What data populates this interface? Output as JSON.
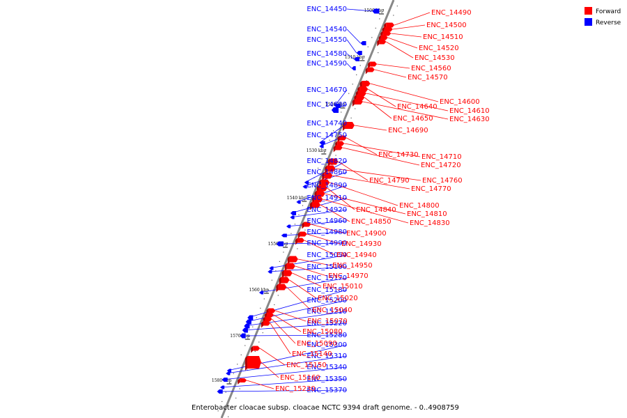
{
  "caption": "Enterobacter cloacae subsp. cloacae NCTC 9394 draft genome. - 0..4908759",
  "legend": {
    "forward": {
      "label": "Forward",
      "color": "#ff0000"
    },
    "reverse": {
      "label": "Reverse",
      "color": "#0000ff"
    }
  },
  "colors": {
    "backbone": "#888888",
    "leader": "#000000"
  },
  "ticks": [
    "1500 kbp",
    "1510 kbp",
    "1520 kbp",
    "1530 kbp",
    "1540 kbp",
    "1550 kbp",
    "1560 kbp",
    "1570 kbp",
    "1580 kbp"
  ],
  "reverse_genes": [
    "ENC_14450",
    "ENC_14540",
    "ENC_14550",
    "ENC_14580",
    "ENC_14590",
    "ENC_14670",
    "ENC_14680",
    "ENC_14740",
    "ENC_14750",
    "ENC_14820",
    "ENC_14860",
    "ENC_14890",
    "ENC_14910",
    "ENC_14920",
    "ENC_14960",
    "ENC_14980",
    "ENC_14990",
    "ENC_15050",
    "ENC_15100",
    "ENC_15170",
    "ENC_15180",
    "ENC_15200",
    "ENC_15210",
    "ENC_15220",
    "ENC_15280",
    "ENC_15300",
    "ENC_15310",
    "ENC_15340",
    "ENC_15350",
    "ENC_15370"
  ],
  "forward_genes": [
    "ENC_14490",
    "ENC_14500",
    "ENC_14510",
    "ENC_14520",
    "ENC_14530",
    "ENC_14560",
    "ENC_14570",
    "ENC_14600",
    "ENC_14640",
    "ENC_14610",
    "ENC_14650",
    "ENC_14630",
    "ENC_14690",
    "ENC_14730",
    "ENC_14710",
    "ENC_14720",
    "ENC_14790",
    "ENC_14760",
    "ENC_14770",
    "ENC_14800",
    "ENC_14840",
    "ENC_14810",
    "ENC_14830",
    "ENC_14850",
    "ENC_14900",
    "ENC_14930",
    "ENC_14940",
    "ENC_14950",
    "ENC_14970",
    "ENC_15010",
    "ENC_15020",
    "ENC_15040",
    "ENC_15070",
    "ENC_15080",
    "ENC_15090",
    "ENC_15140",
    "ENC_15150",
    "ENC_15160",
    "ENC_15230"
  ]
}
